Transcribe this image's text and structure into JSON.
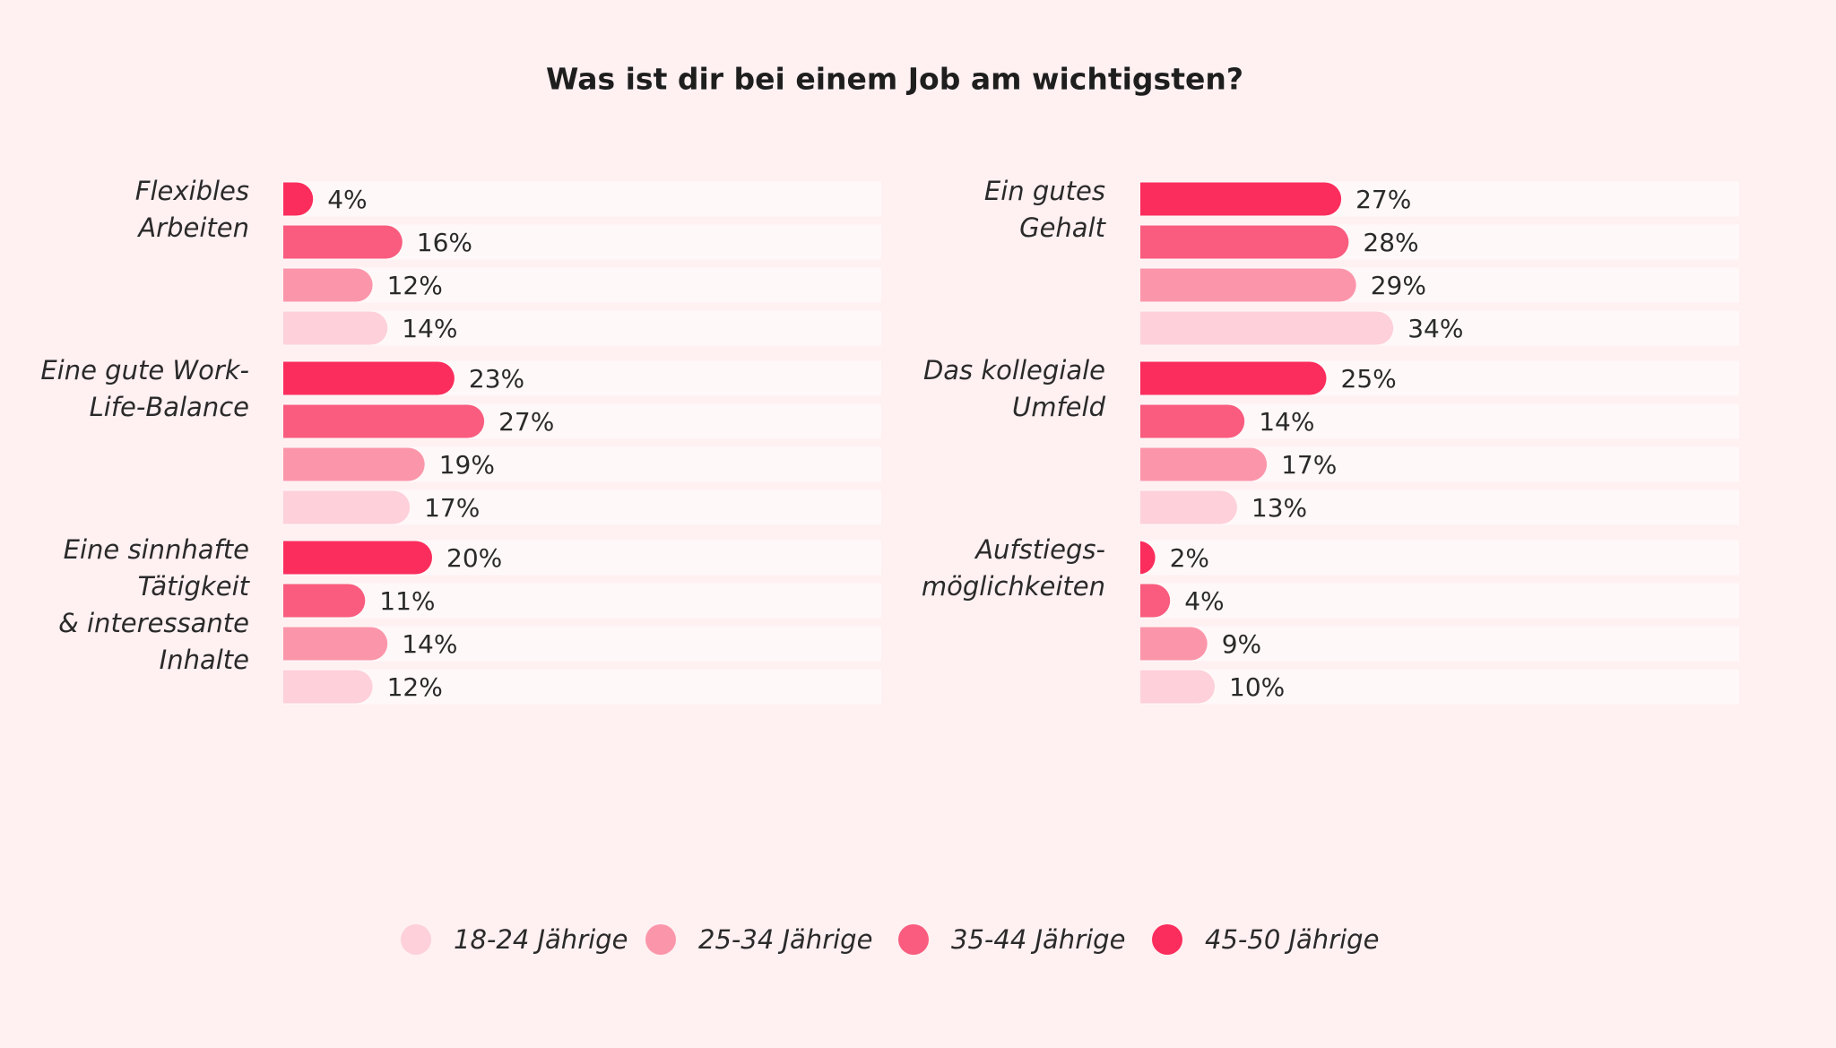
{
  "chart_data": {
    "type": "bar",
    "orientation": "horizontal",
    "title": "Was ist dir bei einem Job am wichtigsten?",
    "categories": [
      "Flexibles\nArbeiten",
      "Eine gute Work-\nLife-Balance",
      "Eine sinnhafte\nTätigkeit\n& interessante\nInhalte",
      "Ein gutes\nGehalt",
      "Das kollegiale\nUmfeld",
      "Aufstiegs-\nmöglichkeiten"
    ],
    "series": [
      {
        "name": "18-24 Jährige",
        "color": "#fdd0da",
        "values": [
          14,
          17,
          12,
          34,
          13,
          10
        ],
        "value_labels": [
          "14%",
          "17%",
          "12%",
          "34%",
          "13%",
          "10%"
        ]
      },
      {
        "name": "25-34 Jährige",
        "color": "#fb96aa",
        "values": [
          12,
          19,
          14,
          29,
          17,
          9
        ],
        "value_labels": [
          "12%",
          "19%",
          "14%",
          "29%",
          "17%",
          "9%"
        ]
      },
      {
        "name": "35-44 Jährige",
        "color": "#f95c7e",
        "values": [
          16,
          27,
          11,
          28,
          14,
          4
        ],
        "value_labels": [
          "16%",
          "27%",
          "11%",
          "28%",
          "14%",
          "4%"
        ]
      },
      {
        "name": "45-50 Jährige",
        "color": "#fb2d5c",
        "values": [
          4,
          23,
          20,
          27,
          25,
          2
        ],
        "value_labels": [
          "4%",
          "23%",
          "20%",
          "27%",
          "25%",
          "2%"
        ]
      }
    ],
    "track_color": "#fff8f9"
  }
}
